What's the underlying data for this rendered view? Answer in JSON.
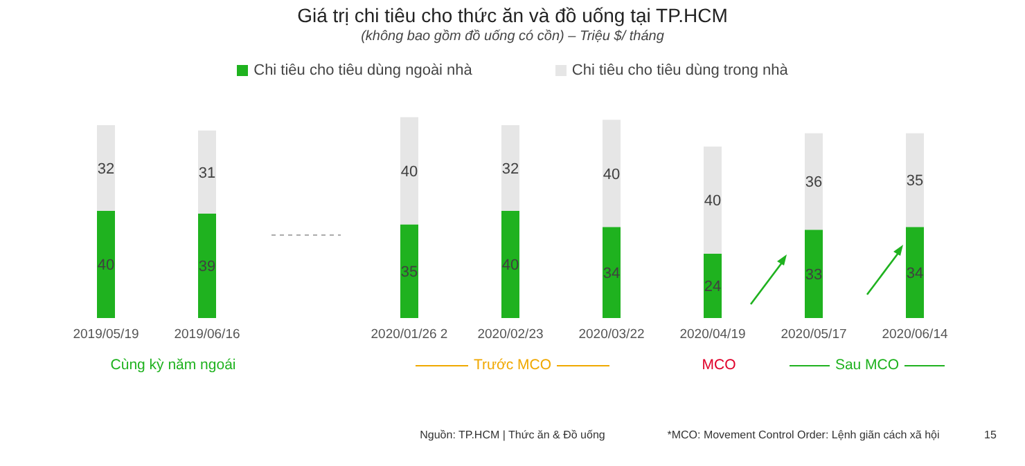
{
  "chart_data": {
    "type": "bar",
    "title": "Giá trị chi tiêu cho thức ăn và đồ uống tại TP.HCM",
    "subtitle": "(không bao gồm đồ uống có cồn) – Triệu $/ tháng",
    "categories": [
      "2019/05/19",
      "2019/06/16",
      null,
      "2020/01/26  2",
      "2020/02/23",
      "2020/03/22",
      "2020/04/19",
      "2020/05/17",
      "2020/06/14"
    ],
    "series": [
      {
        "name": "Chi tiêu cho tiêu dùng ngoài nhà",
        "color": "#1fb21f",
        "values": [
          40,
          39,
          null,
          35,
          40,
          34,
          24,
          33,
          34
        ]
      },
      {
        "name": "Chi tiêu cho tiêu dùng trong nhà",
        "color": "#e6e6e6",
        "values": [
          32,
          31,
          null,
          40,
          32,
          40,
          40,
          36,
          35
        ]
      }
    ],
    "stacked": true,
    "data_labels": true,
    "legend": "top",
    "annotations": [
      "Cùng kỳ năm ngoái",
      "Trước MCO",
      "MCO",
      "Sau MCO",
      "Nguồn: TP.HCM | Thức ăn & Đồ uống",
      "*MCO: Movement Control Order: Lệnh giãn cách xã hội",
      "15"
    ]
  }
}
